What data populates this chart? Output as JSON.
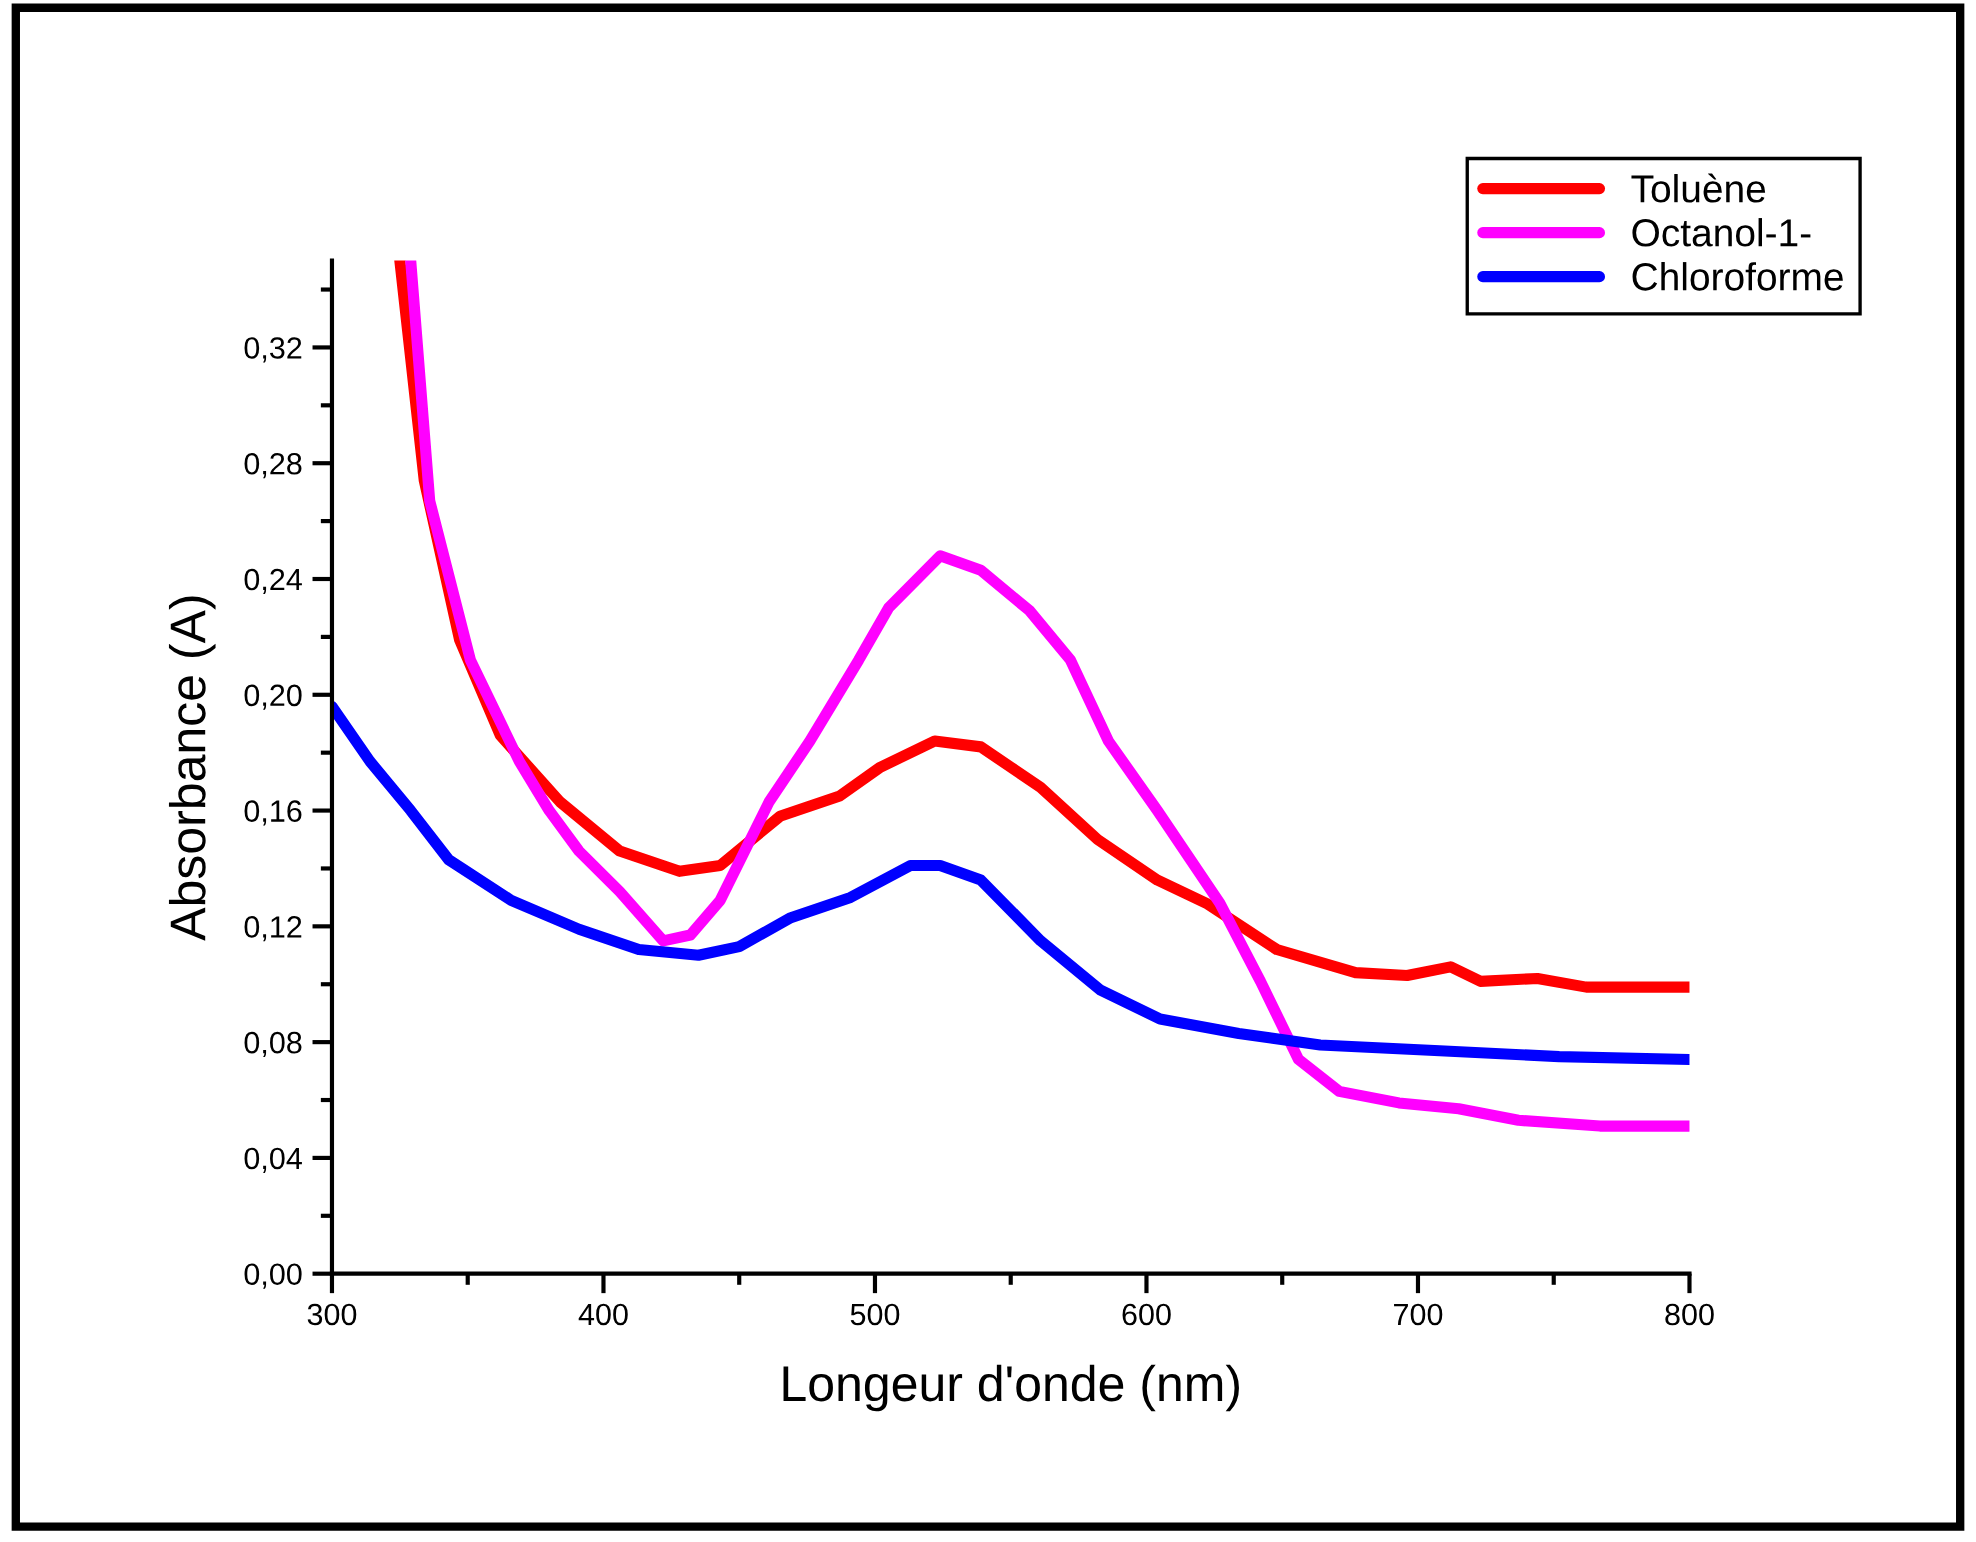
{
  "chart_data": {
    "type": "line",
    "xlabel": "Longeur d'onde (nm)",
    "ylabel": "Absorbance (A)",
    "xlim": [
      300,
      800
    ],
    "ylim": [
      0,
      0.35
    ],
    "xticks": [
      300,
      {
        "value": 350,
        "label": null
      },
      400,
      {
        "value": 450,
        "label": null
      },
      500,
      {
        "value": 550,
        "label": null
      },
      600,
      {
        "value": 650,
        "label": null
      },
      700,
      {
        "value": 750,
        "label": null
      },
      800
    ],
    "yticks": [
      {
        "value": 0,
        "label": "0,00"
      },
      {
        "value": 0.02,
        "label": null
      },
      {
        "value": 0.04,
        "label": "0,04"
      },
      {
        "value": 0.06,
        "label": null
      },
      {
        "value": 0.08,
        "label": "0,08"
      },
      {
        "value": 0.1,
        "label": null
      },
      {
        "value": 0.12,
        "label": "0,12"
      },
      {
        "value": 0.14,
        "label": null
      },
      {
        "value": 0.16,
        "label": "0,16"
      },
      {
        "value": 0.18,
        "label": null
      },
      {
        "value": 0.2,
        "label": "0,20"
      },
      {
        "value": 0.22,
        "label": null
      },
      {
        "value": 0.24,
        "label": "0,24"
      },
      {
        "value": 0.26,
        "label": null
      },
      {
        "value": 0.28,
        "label": "0,28"
      },
      {
        "value": 0.3,
        "label": null
      },
      {
        "value": 0.32,
        "label": "0,32"
      },
      {
        "value": 0.34,
        "label": null
      }
    ],
    "grid": false,
    "legend": "top right",
    "marker": "none",
    "line_style": "solid",
    "series": [
      {
        "name": "Toluène",
        "color": "#ff0000",
        "x": [
          325,
          334,
          347,
          362,
          384,
          406,
          428,
          443,
          465,
          487,
          502,
          522,
          539,
          561,
          582,
          604,
          622,
          648,
          677,
          696,
          712,
          723,
          744,
          762,
          800
        ],
        "values": [
          0.35,
          0.274,
          0.219,
          0.186,
          0.163,
          0.146,
          0.139,
          0.141,
          0.158,
          0.165,
          0.175,
          0.184,
          0.182,
          0.168,
          0.15,
          0.136,
          0.128,
          0.112,
          0.104,
          0.103,
          0.106,
          0.101,
          0.102,
          0.099,
          0.099
        ]
      },
      {
        "name": "Octanol-1-",
        "color": "#ff00ff",
        "x": [
          329,
          336,
          351,
          369,
          380,
          391,
          406,
          422,
          432,
          443,
          461,
          476,
          494,
          505,
          524,
          539,
          557,
          572,
          586,
          604,
          627,
          642,
          656,
          671,
          693,
          715,
          737,
          767,
          800
        ],
        "values": [
          0.35,
          0.267,
          0.212,
          0.177,
          0.16,
          0.146,
          0.132,
          0.115,
          0.117,
          0.129,
          0.163,
          0.184,
          0.212,
          0.23,
          0.248,
          0.243,
          0.229,
          0.212,
          0.184,
          0.16,
          0.128,
          0.101,
          0.074,
          0.063,
          0.059,
          0.057,
          0.053,
          0.051,
          0.051
        ]
      },
      {
        "name": "Chloroforme",
        "color": "#0000ff",
        "x": [
          300,
          314,
          329,
          343,
          366,
          391,
          413,
          435,
          450,
          469,
          491,
          513,
          524,
          539,
          561,
          583,
          605,
          634,
          664,
          708,
          752,
          800
        ],
        "values": [
          0.196,
          0.177,
          0.16,
          0.143,
          0.129,
          0.119,
          0.112,
          0.11,
          0.113,
          0.123,
          0.13,
          0.141,
          0.141,
          0.136,
          0.115,
          0.098,
          0.088,
          0.083,
          0.079,
          0.077,
          0.075,
          0.074
        ]
      }
    ]
  }
}
